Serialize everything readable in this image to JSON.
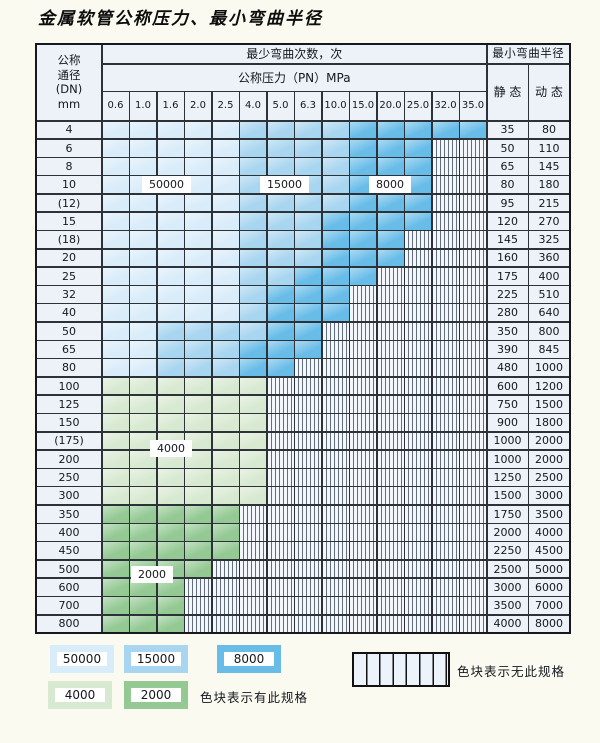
{
  "title": "金属软管公称压力、最小弯曲半径",
  "table": {
    "dn_header_lines": [
      "公称",
      "通径",
      "(DN)",
      "mm"
    ],
    "bend_count_header": "最少弯曲次数，次",
    "pressure_header": "公称压力（PN）MPa",
    "radius_header": "最小弯曲半径",
    "static_header": "静 态",
    "dynamic_header": "动 态",
    "pressure_columns": [
      "0.6",
      "1.0",
      "1.6",
      "2.0",
      "2.5",
      "4.0",
      "5.0",
      "6.3",
      "10.0",
      "15.0",
      "20.0",
      "25.0",
      "32.0",
      "35.0"
    ],
    "rows": [
      {
        "dn": "4",
        "static": "35",
        "dynamic": "80",
        "cells": [
          "50000",
          "50000",
          "50000",
          "50000",
          "50000",
          "15000",
          "15000",
          "15000",
          "15000",
          "8000",
          "8000",
          "8000",
          "8000",
          "8000"
        ]
      },
      {
        "dn": "6",
        "static": "50",
        "dynamic": "110",
        "cells": [
          "50000",
          "50000",
          "50000",
          "50000",
          "50000",
          "15000",
          "15000",
          "15000",
          "15000",
          "8000",
          "8000",
          "8000",
          "",
          ""
        ]
      },
      {
        "dn": "8",
        "static": "65",
        "dynamic": "145",
        "cells": [
          "50000",
          "50000",
          "50000",
          "50000",
          "50000",
          "15000",
          "15000",
          "15000",
          "15000",
          "8000",
          "8000",
          "8000",
          "",
          ""
        ]
      },
      {
        "dn": "10",
        "static": "80",
        "dynamic": "180",
        "cells": [
          "50000",
          "50000",
          "50000",
          "50000",
          "50000",
          "15000",
          "15000",
          "15000",
          "15000",
          "8000",
          "8000",
          "8000",
          "",
          ""
        ]
      },
      {
        "dn": "(12)",
        "static": "95",
        "dynamic": "215",
        "cells": [
          "50000",
          "50000",
          "50000",
          "50000",
          "50000",
          "15000",
          "15000",
          "15000",
          "15000",
          "8000",
          "8000",
          "8000",
          "",
          ""
        ]
      },
      {
        "dn": "15",
        "static": "120",
        "dynamic": "270",
        "cells": [
          "50000",
          "50000",
          "50000",
          "50000",
          "50000",
          "15000",
          "15000",
          "15000",
          "8000",
          "8000",
          "8000",
          "8000",
          "",
          ""
        ]
      },
      {
        "dn": "(18)",
        "static": "145",
        "dynamic": "325",
        "cells": [
          "50000",
          "50000",
          "50000",
          "50000",
          "50000",
          "15000",
          "15000",
          "15000",
          "8000",
          "8000",
          "8000",
          "",
          "",
          ""
        ]
      },
      {
        "dn": "20",
        "static": "160",
        "dynamic": "360",
        "cells": [
          "50000",
          "50000",
          "50000",
          "50000",
          "50000",
          "15000",
          "15000",
          "15000",
          "8000",
          "8000",
          "8000",
          "",
          "",
          ""
        ]
      },
      {
        "dn": "25",
        "static": "175",
        "dynamic": "400",
        "cells": [
          "50000",
          "50000",
          "50000",
          "50000",
          "50000",
          "15000",
          "15000",
          "8000",
          "8000",
          "8000",
          "",
          "",
          "",
          ""
        ]
      },
      {
        "dn": "32",
        "static": "225",
        "dynamic": "510",
        "cells": [
          "50000",
          "50000",
          "50000",
          "50000",
          "50000",
          "15000",
          "8000",
          "8000",
          "8000",
          "",
          "",
          "",
          "",
          ""
        ]
      },
      {
        "dn": "40",
        "static": "280",
        "dynamic": "640",
        "cells": [
          "50000",
          "50000",
          "50000",
          "50000",
          "50000",
          "15000",
          "8000",
          "8000",
          "8000",
          "",
          "",
          "",
          "",
          ""
        ]
      },
      {
        "dn": "50",
        "static": "350",
        "dynamic": "800",
        "cells": [
          "50000",
          "50000",
          "15000",
          "15000",
          "15000",
          "15000",
          "8000",
          "8000",
          "",
          "",
          "",
          "",
          "",
          ""
        ]
      },
      {
        "dn": "65",
        "static": "390",
        "dynamic": "845",
        "cells": [
          "50000",
          "50000",
          "15000",
          "15000",
          "15000",
          "8000",
          "8000",
          "8000",
          "",
          "",
          "",
          "",
          "",
          ""
        ]
      },
      {
        "dn": "80",
        "static": "480",
        "dynamic": "1000",
        "cells": [
          "50000",
          "50000",
          "15000",
          "15000",
          "15000",
          "8000",
          "8000",
          "",
          "",
          "",
          "",
          "",
          "",
          ""
        ]
      },
      {
        "dn": "100",
        "static": "600",
        "dynamic": "1200",
        "cells": [
          "4000",
          "4000",
          "4000",
          "4000",
          "4000",
          "4000",
          "",
          "",
          "",
          "",
          "",
          "",
          "",
          ""
        ]
      },
      {
        "dn": "125",
        "static": "750",
        "dynamic": "1500",
        "cells": [
          "4000",
          "4000",
          "4000",
          "4000",
          "4000",
          "4000",
          "",
          "",
          "",
          "",
          "",
          "",
          "",
          ""
        ]
      },
      {
        "dn": "150",
        "static": "900",
        "dynamic": "1800",
        "cells": [
          "4000",
          "4000",
          "4000",
          "4000",
          "4000",
          "4000",
          "",
          "",
          "",
          "",
          "",
          "",
          "",
          ""
        ]
      },
      {
        "dn": "(175)",
        "static": "1000",
        "dynamic": "2000",
        "cells": [
          "4000",
          "4000",
          "4000",
          "4000",
          "4000",
          "4000",
          "",
          "",
          "",
          "",
          "",
          "",
          "",
          ""
        ]
      },
      {
        "dn": "200",
        "static": "1000",
        "dynamic": "2000",
        "cells": [
          "4000",
          "4000",
          "4000",
          "4000",
          "4000",
          "4000",
          "",
          "",
          "",
          "",
          "",
          "",
          "",
          ""
        ]
      },
      {
        "dn": "250",
        "static": "1250",
        "dynamic": "2500",
        "cells": [
          "4000",
          "4000",
          "4000",
          "4000",
          "4000",
          "4000",
          "",
          "",
          "",
          "",
          "",
          "",
          "",
          ""
        ]
      },
      {
        "dn": "300",
        "static": "1500",
        "dynamic": "3000",
        "cells": [
          "4000",
          "4000",
          "4000",
          "4000",
          "4000",
          "4000",
          "",
          "",
          "",
          "",
          "",
          "",
          "",
          ""
        ]
      },
      {
        "dn": "350",
        "static": "1750",
        "dynamic": "3500",
        "cells": [
          "2000",
          "2000",
          "2000",
          "2000",
          "2000",
          "",
          "",
          "",
          "",
          "",
          "",
          "",
          "",
          ""
        ]
      },
      {
        "dn": "400",
        "static": "2000",
        "dynamic": "4000",
        "cells": [
          "2000",
          "2000",
          "2000",
          "2000",
          "2000",
          "",
          "",
          "",
          "",
          "",
          "",
          "",
          "",
          ""
        ]
      },
      {
        "dn": "450",
        "static": "2250",
        "dynamic": "4500",
        "cells": [
          "2000",
          "2000",
          "2000",
          "2000",
          "2000",
          "",
          "",
          "",
          "",
          "",
          "",
          "",
          "",
          ""
        ]
      },
      {
        "dn": "500",
        "static": "2500",
        "dynamic": "5000",
        "cells": [
          "2000",
          "2000",
          "2000",
          "2000",
          "",
          "",
          "",
          "",
          "",
          "",
          "",
          "",
          "",
          ""
        ]
      },
      {
        "dn": "600",
        "static": "3000",
        "dynamic": "6000",
        "cells": [
          "2000",
          "2000",
          "2000",
          "",
          "",
          "",
          "",
          "",
          "",
          "",
          "",
          "",
          "",
          ""
        ]
      },
      {
        "dn": "700",
        "static": "3500",
        "dynamic": "7000",
        "cells": [
          "2000",
          "2000",
          "2000",
          "",
          "",
          "",
          "",
          "",
          "",
          "",
          "",
          "",
          "",
          ""
        ]
      },
      {
        "dn": "800",
        "static": "4000",
        "dynamic": "8000",
        "cells": [
          "2000",
          "2000",
          "2000",
          "",
          "",
          "",
          "",
          "",
          "",
          "",
          "",
          "",
          "",
          ""
        ]
      }
    ]
  },
  "overlay_labels": [
    {
      "text": "50000"
    },
    {
      "text": "15000"
    },
    {
      "text": "8000"
    },
    {
      "text": "4000"
    },
    {
      "text": "2000"
    }
  ],
  "legend": {
    "items": [
      {
        "label": "50000"
      },
      {
        "label": "15000"
      },
      {
        "label": "8000"
      },
      {
        "label": "4000"
      },
      {
        "label": "2000"
      }
    ],
    "has_spec_note": "色块表示有此规格",
    "no_spec_note": "色块表示无此规格"
  },
  "colors": {
    "page_bg": "#fafaf0",
    "cell_bg": "#edf2f8",
    "grid_line": "#2d3138",
    "blue_50000": "#d9ecf9",
    "blue_15000": "#a8d5f0",
    "blue_8000": "#68bce8",
    "green_4000": "#d8e9d1",
    "green_2000": "#94c994",
    "stripe_bg": "#f3f7fb",
    "stripe_line": "#646f7c",
    "label_bg": "#ffffff",
    "text": "#14181d"
  }
}
